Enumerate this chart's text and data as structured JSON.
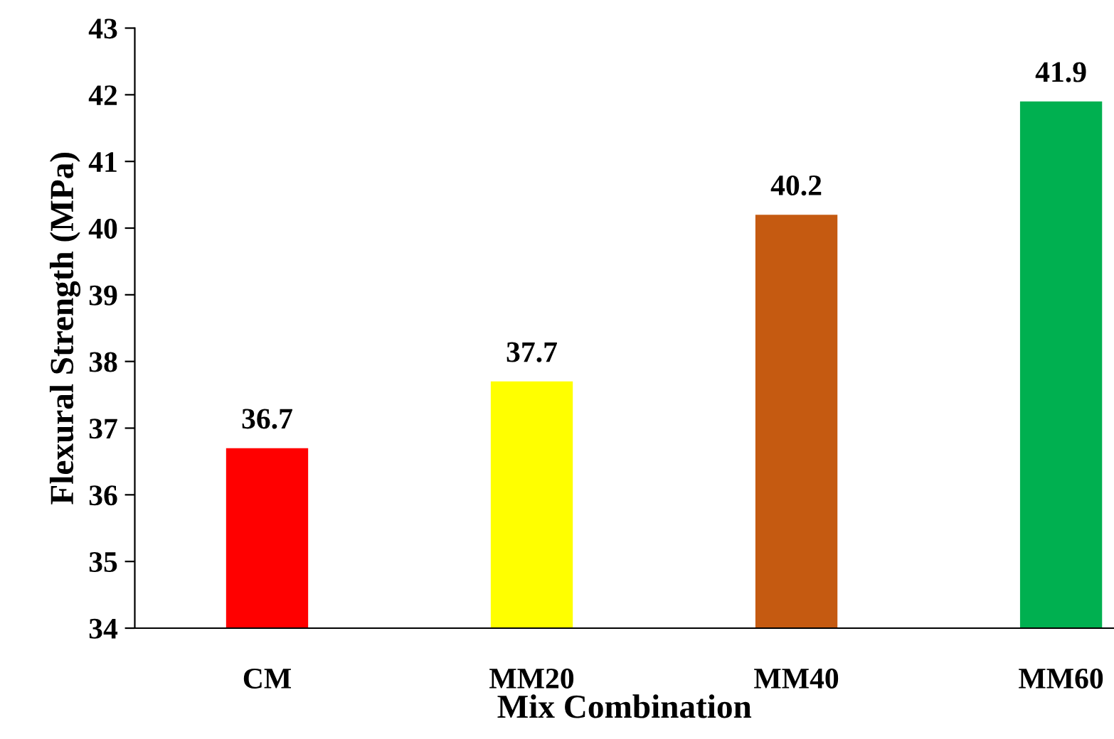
{
  "chart_data": {
    "type": "bar",
    "xlabel": "Mix Combination",
    "ylabel": "Flexural Strength (MPa)",
    "categories": [
      "CM",
      "MM20",
      "MM40",
      "MM60"
    ],
    "values": [
      36.7,
      37.7,
      40.2,
      41.9
    ],
    "colors": [
      "#ff0000",
      "#ffff00",
      "#c55a11",
      "#00b050"
    ],
    "ylim": [
      34,
      43
    ],
    "yticks": [
      34,
      35,
      36,
      37,
      38,
      39,
      40,
      41,
      42,
      43
    ],
    "data_labels": true,
    "grid": false,
    "legend": false
  }
}
